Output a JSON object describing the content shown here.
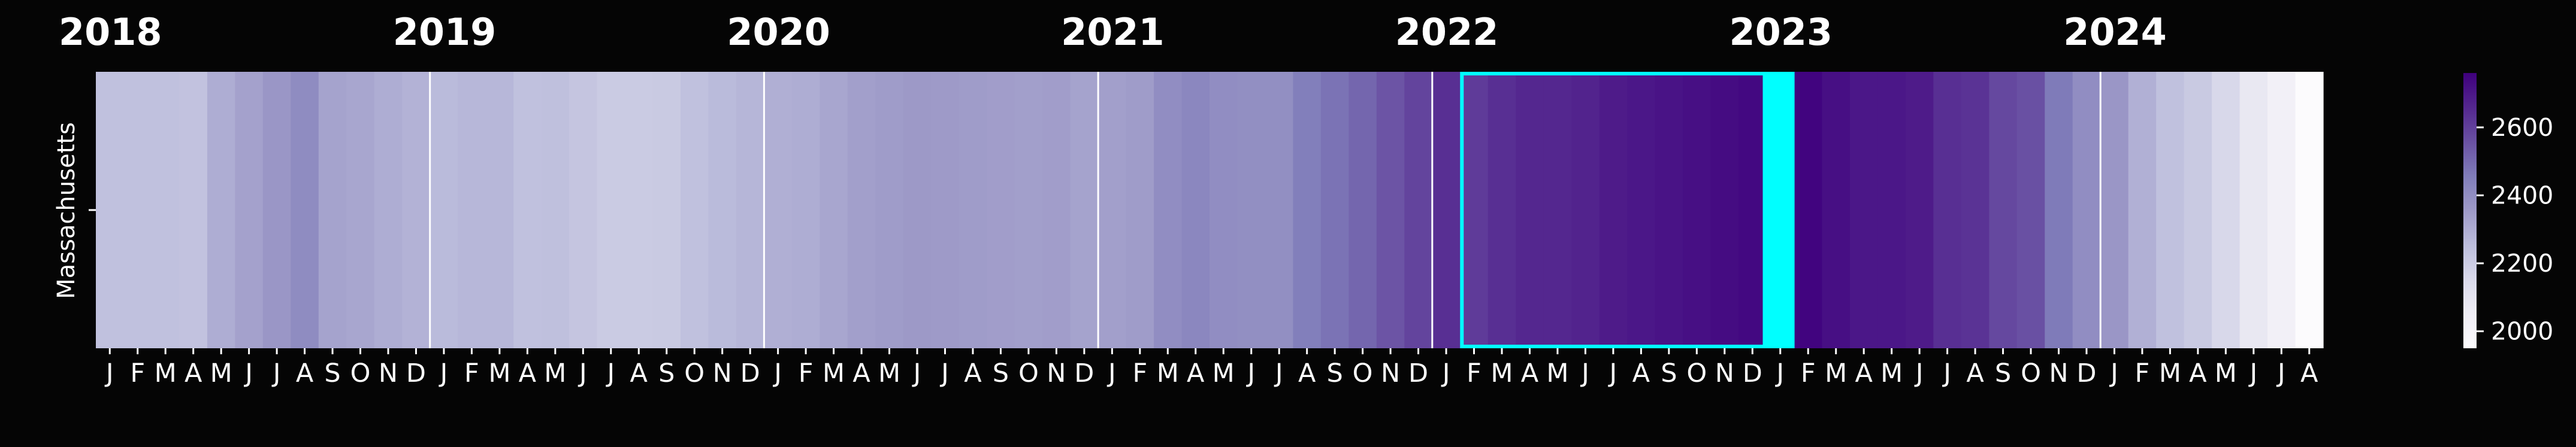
{
  "chart_data": {
    "type": "heatmap",
    "title": "",
    "xlabel": "",
    "ylabel": "",
    "rows": [
      "Massachusetts"
    ],
    "year_labels": [
      "2018",
      "2019",
      "2020",
      "2021",
      "2022",
      "2023",
      "2024"
    ],
    "month_labels": [
      "J",
      "F",
      "M",
      "A",
      "M",
      "J",
      "J",
      "A",
      "S",
      "O",
      "N",
      "D"
    ],
    "start": "2018-01",
    "end": "2024-08",
    "values": [
      2240,
      2240,
      2240,
      2235,
      2300,
      2335,
      2370,
      2405,
      2330,
      2320,
      2300,
      2285,
      2260,
      2270,
      2270,
      2240,
      2245,
      2225,
      2205,
      2205,
      2210,
      2240,
      2260,
      2275,
      2295,
      2300,
      2320,
      2340,
      2350,
      2360,
      2355,
      2350,
      2345,
      2340,
      2345,
      2330,
      2340,
      2350,
      2400,
      2420,
      2400,
      2395,
      2395,
      2450,
      2480,
      2510,
      2550,
      2590,
      2640,
      2610,
      2640,
      2660,
      2660,
      2670,
      2690,
      2700,
      2710,
      2720,
      2730,
      2740,
      2760,
      2750,
      2720,
      2700,
      2700,
      2690,
      2640,
      2630,
      2580,
      2560,
      2460,
      2400,
      2370,
      2290,
      2240,
      2210,
      2160,
      2080,
      2030,
      1950
    ],
    "colorbar": {
      "min": 1950,
      "max": 2760,
      "ticks": [
        2000,
        2200,
        2400,
        2600
      ]
    },
    "highlight": {
      "start": "2022-02",
      "end": "2022-12",
      "color": "#00ffff"
    },
    "marked_cell": {
      "month": "2023-01",
      "color": "#00ffff"
    },
    "colormap": [
      "#fcfbfd",
      "#efedf5",
      "#dadaeb",
      "#bcbddc",
      "#9e9ac8",
      "#807dba",
      "#6a51a3",
      "#54278f",
      "#3f007d"
    ]
  }
}
